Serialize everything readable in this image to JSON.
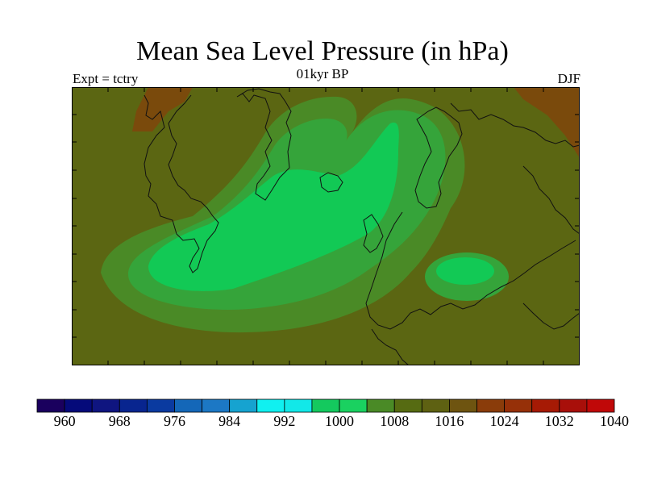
{
  "title": "Mean Sea Level Pressure (in hPa)",
  "subtitle_left": "Expt = tctry",
  "subtitle_center": "01kyr BP",
  "subtitle_right": "DJF",
  "colorbar": {
    "colors": [
      "#1a005e",
      "#050a7a",
      "#0f1580",
      "#08258f",
      "#0a3aa0",
      "#1467b8",
      "#1c78c5",
      "#16a3d0",
      "#10f0f0",
      "#12e8e8",
      "#14c95e",
      "#1ad160",
      "#4a8a26",
      "#566b12",
      "#5e6112",
      "#6e5410",
      "#8a3c0a",
      "#963008",
      "#a61a05",
      "#a80f0a",
      "#c00808"
    ],
    "labels": [
      "960",
      "968",
      "976",
      "984",
      "992",
      "1000",
      "1008",
      "1016",
      "1024",
      "1032",
      "1040"
    ]
  },
  "map": {
    "colors": {
      "background": "#5b6612",
      "ring1": "#4a8a26",
      "ring2": "#35a43a",
      "core": "#12c955",
      "high": "#7a4a0c",
      "coast": "#111111",
      "frame": "#000000"
    }
  }
}
